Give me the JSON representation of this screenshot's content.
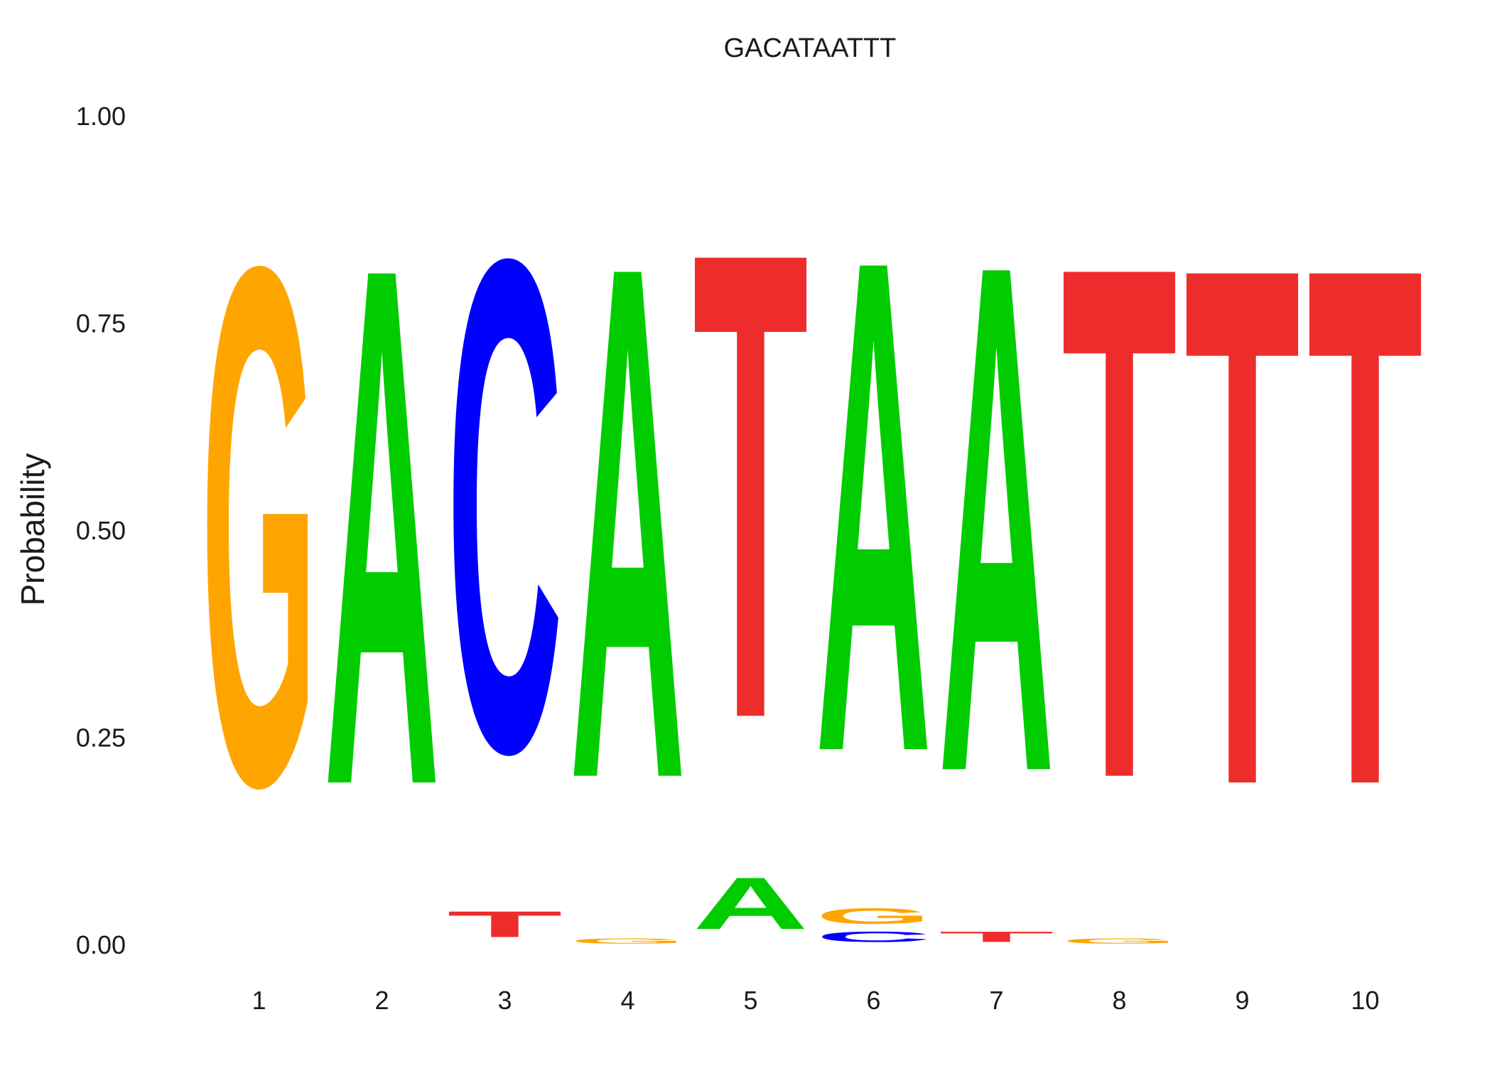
{
  "chart_data": {
    "type": "sequence-logo",
    "title": "GACATAATTT",
    "ylabel": "Probability",
    "xlabel": "",
    "ylim": [
      0,
      1
    ],
    "y_ticks": [
      "0.00",
      "0.25",
      "0.50",
      "0.75",
      "1.00"
    ],
    "y_tick_values": [
      0,
      0.25,
      0.5,
      0.75,
      1.0
    ],
    "positions": [
      "1",
      "2",
      "3",
      "4",
      "5",
      "6",
      "7",
      "8",
      "9",
      "10"
    ],
    "colors": {
      "A": "#00cc00",
      "C": "#0000ff",
      "G": "#ffa500",
      "T": "#ee2c2c"
    },
    "columns": [
      {
        "position": "1",
        "letters": [
          {
            "base": "G",
            "prob": 1.0
          }
        ]
      },
      {
        "position": "2",
        "letters": [
          {
            "base": "A",
            "prob": 1.0
          }
        ]
      },
      {
        "position": "3",
        "letters": [
          {
            "base": "T",
            "prob": 0.05
          },
          {
            "base": "C",
            "prob": 0.95
          }
        ]
      },
      {
        "position": "4",
        "letters": [
          {
            "base": "G",
            "prob": 0.01
          },
          {
            "base": "A",
            "prob": 0.99
          }
        ]
      },
      {
        "position": "5",
        "letters": [
          {
            "base": "A",
            "prob": 0.1
          },
          {
            "base": "T",
            "prob": 0.9
          }
        ]
      },
      {
        "position": "6",
        "letters": [
          {
            "base": "C",
            "prob": 0.02
          },
          {
            "base": "G",
            "prob": 0.03
          },
          {
            "base": "A",
            "prob": 0.95
          }
        ]
      },
      {
        "position": "7",
        "letters": [
          {
            "base": "T",
            "prob": 0.02
          },
          {
            "base": "A",
            "prob": 0.98
          }
        ]
      },
      {
        "position": "8",
        "letters": [
          {
            "base": "G",
            "prob": 0.01
          },
          {
            "base": "T",
            "prob": 0.99
          }
        ]
      },
      {
        "position": "9",
        "letters": [
          {
            "base": "T",
            "prob": 1.0
          }
        ]
      },
      {
        "position": "10",
        "letters": [
          {
            "base": "T",
            "prob": 1.0
          }
        ]
      }
    ]
  }
}
